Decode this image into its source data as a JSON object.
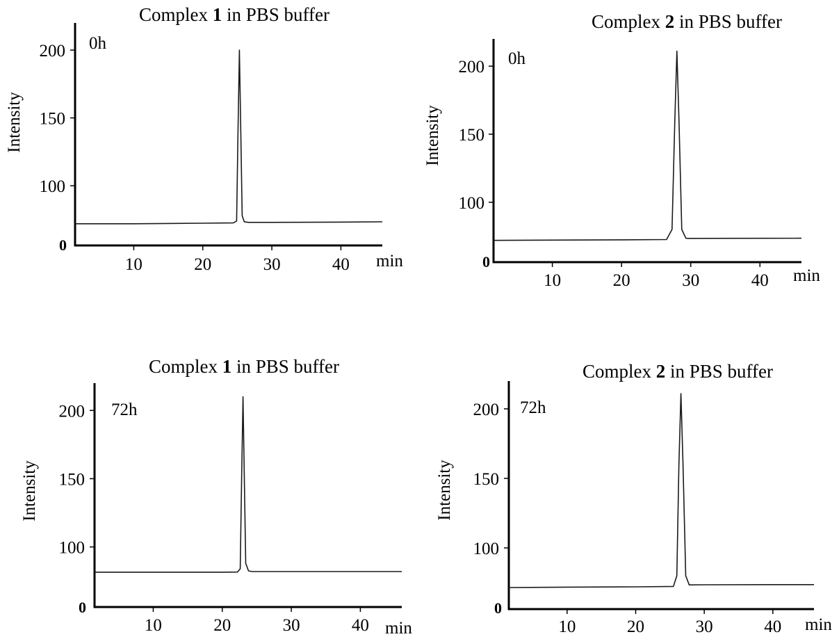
{
  "chart_data": [
    {
      "type": "line",
      "title": {
        "prefix": "Complex ",
        "bold": "1",
        "suffix": " in PBS buffer"
      },
      "annotation": "0h",
      "ylabel": "Intensity",
      "xunit": "min",
      "xlim": [
        1.5,
        46
      ],
      "ylim": [
        56,
        220
      ],
      "xticks": [
        10,
        20,
        30,
        40
      ],
      "yticks": [
        100,
        150,
        200
      ],
      "baseline_label": "0",
      "series": [
        {
          "x": [
            1.5,
            10,
            20,
            24.4,
            24.9,
            25.1,
            25.3,
            25.5,
            25.7,
            26.0,
            26.6,
            30,
            40,
            46
          ],
          "y": [
            72,
            72,
            72.4,
            72.6,
            74,
            140,
            200,
            140,
            78,
            73.5,
            73,
            73,
            73.2,
            73.4
          ]
        }
      ]
    },
    {
      "type": "line",
      "title": {
        "prefix": "Complex ",
        "bold": "2",
        "suffix": " in PBS buffer"
      },
      "annotation": "0h",
      "ylabel": "Intensity",
      "xunit": "min",
      "xlim": [
        1.5,
        46
      ],
      "ylim": [
        56,
        220
      ],
      "xticks": [
        10,
        20,
        30,
        40
      ],
      "yticks": [
        100,
        150,
        200
      ],
      "baseline_label": "0",
      "series": [
        {
          "x": [
            1.5,
            10,
            20,
            26.5,
            27.3,
            27.7,
            28.0,
            28.3,
            28.7,
            29.3,
            30,
            40,
            46
          ],
          "y": [
            72,
            72.2,
            72.4,
            72.6,
            80,
            160,
            211,
            160,
            80,
            73.5,
            73.4,
            73.5,
            73.6
          ]
        }
      ]
    },
    {
      "type": "line",
      "title": {
        "prefix": "Complex ",
        "bold": "1",
        "suffix": " in PBS buffer"
      },
      "annotation": "72h",
      "ylabel": "Intensity",
      "xunit": "min",
      "xlim": [
        1.5,
        46
      ],
      "ylim": [
        56,
        220
      ],
      "xticks": [
        10,
        20,
        30,
        40
      ],
      "yticks": [
        100,
        150,
        200
      ],
      "baseline_label": "0",
      "series": [
        {
          "x": [
            1.5,
            10,
            20,
            22.2,
            22.6,
            22.8,
            23.0,
            23.2,
            23.4,
            23.8,
            24.3,
            30,
            40,
            46
          ],
          "y": [
            81.5,
            81.5,
            81.5,
            81.6,
            84,
            150,
            210,
            150,
            88,
            82.5,
            82,
            82,
            82,
            82
          ]
        }
      ]
    },
    {
      "type": "line",
      "title": {
        "prefix": "Complex ",
        "bold": "2",
        "suffix": " in PBS buffer"
      },
      "annotation": "72h",
      "ylabel": "Intensity",
      "xunit": "min",
      "xlim": [
        1.5,
        46
      ],
      "ylim": [
        56,
        220
      ],
      "xticks": [
        10,
        20,
        30,
        40
      ],
      "yticks": [
        100,
        150,
        200
      ],
      "baseline_label": "0",
      "series": [
        {
          "x": [
            1.5,
            10,
            20,
            25.5,
            26.0,
            26.3,
            26.6,
            26.9,
            27.3,
            27.8,
            30,
            40,
            46
          ],
          "y": [
            71.5,
            71.8,
            72,
            72.3,
            80,
            160,
            211,
            160,
            80,
            73.4,
            73.5,
            73.6,
            73.6
          ]
        }
      ]
    }
  ]
}
